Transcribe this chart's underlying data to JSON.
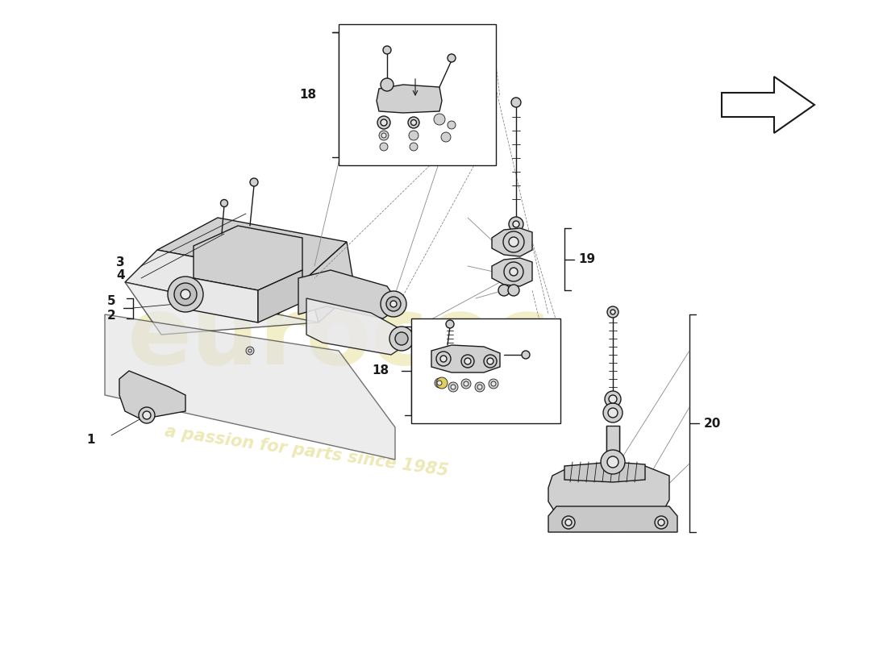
{
  "bg_color": "#ffffff",
  "line_color": "#1a1a1a",
  "gray_line": "#888888",
  "light_gray": "#aaaaaa",
  "fill_light": "#e8e8e8",
  "fill_mid": "#d0d0d0",
  "fill_dark": "#b8b8b8",
  "fill_yellow": "#e8d870",
  "watermark_color": "#d4c84a",
  "watermark_alpha": 0.3,
  "lw_main": 1.0,
  "lw_heavy": 1.5,
  "lw_thin": 0.6,
  "label_fontsize": 10,
  "figsize": [
    11.0,
    8.0
  ],
  "dpi": 100
}
